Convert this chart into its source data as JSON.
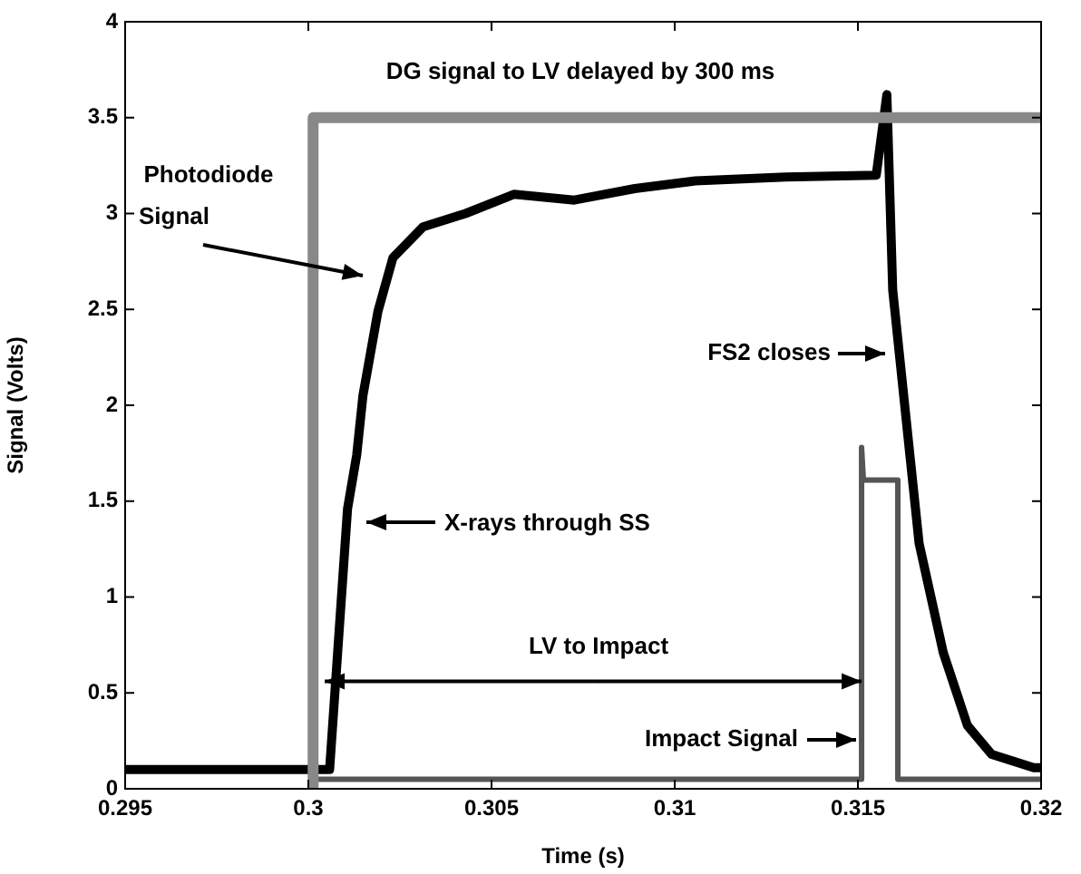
{
  "chart_data": {
    "type": "line",
    "xlabel": "Time (s)",
    "ylabel": "Signal (Volts)",
    "xlim": [
      0.295,
      0.32
    ],
    "xticks": [
      0.295,
      0.3,
      0.305,
      0.31,
      0.315,
      0.32
    ],
    "ylim": [
      0,
      4
    ],
    "yticks": [
      0,
      0.5,
      1,
      1.5,
      2,
      2.5,
      3,
      3.5,
      4
    ],
    "grid": false,
    "legend": false,
    "marker": "none",
    "line_style": "solid",
    "series": [
      {
        "color": "#888888",
        "x": [
          0.30013,
          0.30013,
          0.32
        ],
        "values": [
          0,
          3.5,
          3.5
        ]
      },
      {
        "color": "#555555",
        "x": [
          0.30013,
          0.3151,
          0.3151,
          0.31515,
          0.31609,
          0.31609,
          0.32
        ],
        "values": [
          0.05,
          0.05,
          1.78,
          1.61,
          1.61,
          0.05,
          0.05
        ]
      },
      {
        "color": "#000000",
        "x": [
          0.295,
          0.30058,
          0.30107,
          0.30132,
          0.30149,
          0.3019,
          0.30231,
          0.30313,
          0.30429,
          0.30561,
          0.30726,
          0.30891,
          0.31056,
          0.31303,
          0.3155,
          0.31579,
          0.31595,
          0.31667,
          0.31733,
          0.31799,
          0.31865,
          0.3198,
          0.32
        ],
        "values": [
          0.1,
          0.1,
          1.46,
          1.74,
          2.05,
          2.49,
          2.77,
          2.93,
          3.0,
          3.1,
          3.07,
          3.13,
          3.17,
          3.19,
          3.2,
          3.62,
          2.6,
          1.28,
          0.71,
          0.33,
          0.18,
          0.11,
          0.11
        ]
      }
    ],
    "annotations": [
      "DG signal to LV delayed by 300 ms",
      "Photodiode\nSignal",
      "X-rays through SS",
      "FS2 closes",
      {
        "text": "LV to Impact",
        "x": 0.3151,
        "y": 0.56
      },
      "Impact Signal"
    ]
  }
}
